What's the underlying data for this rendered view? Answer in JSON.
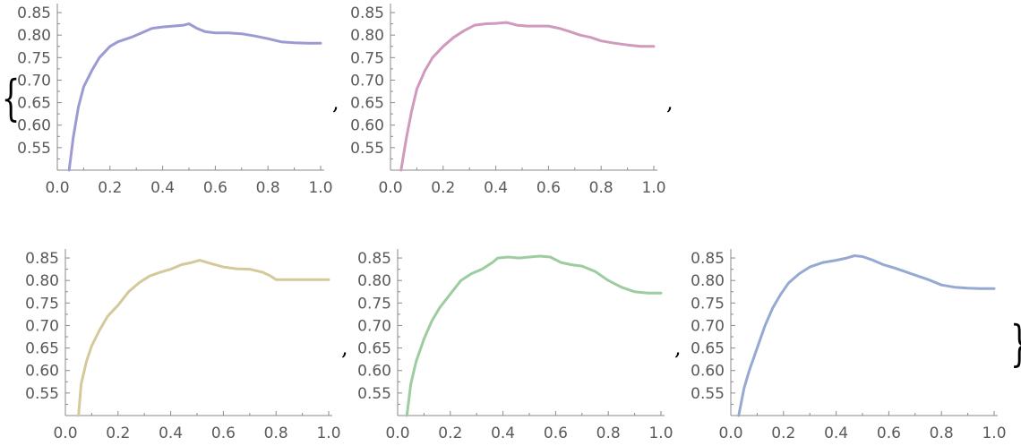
{
  "list_tokens": {
    "open": "{",
    "close": "}",
    "comma": ","
  },
  "chart_data": [
    {
      "type": "line",
      "color": "#9c9ad3",
      "xlim": [
        0,
        1
      ],
      "ylim": [
        0.5,
        0.87
      ],
      "xticks": [
        "0.0",
        "0.2",
        "0.4",
        "0.6",
        "0.8",
        "1.0"
      ],
      "yticks": [
        "0.55",
        "0.60",
        "0.65",
        "0.70",
        "0.75",
        "0.80",
        "0.85"
      ],
      "series": [
        {
          "x": [
            0.045,
            0.06,
            0.08,
            0.1,
            0.13,
            0.16,
            0.2,
            0.23,
            0.28,
            0.32,
            0.36,
            0.4,
            0.44,
            0.48,
            0.5,
            0.53,
            0.56,
            0.6,
            0.65,
            0.7,
            0.75,
            0.8,
            0.85,
            0.9,
            0.95,
            1.0
          ],
          "y": [
            0.5,
            0.57,
            0.64,
            0.685,
            0.72,
            0.75,
            0.775,
            0.785,
            0.795,
            0.805,
            0.815,
            0.818,
            0.82,
            0.822,
            0.825,
            0.815,
            0.808,
            0.805,
            0.805,
            0.803,
            0.798,
            0.792,
            0.785,
            0.783,
            0.782,
            0.782
          ]
        }
      ]
    },
    {
      "type": "line",
      "color": "#cf9abc",
      "xlim": [
        0,
        1
      ],
      "ylim": [
        0.5,
        0.87
      ],
      "xticks": [
        "0.0",
        "0.2",
        "0.4",
        "0.6",
        "0.8",
        "1.0"
      ],
      "yticks": [
        "0.55",
        "0.60",
        "0.65",
        "0.70",
        "0.75",
        "0.80",
        "0.85"
      ],
      "series": [
        {
          "x": [
            0.04,
            0.06,
            0.08,
            0.1,
            0.13,
            0.16,
            0.2,
            0.24,
            0.28,
            0.32,
            0.36,
            0.4,
            0.44,
            0.48,
            0.52,
            0.56,
            0.6,
            0.64,
            0.68,
            0.72,
            0.76,
            0.8,
            0.85,
            0.9,
            0.95,
            1.0
          ],
          "y": [
            0.5,
            0.57,
            0.63,
            0.68,
            0.72,
            0.75,
            0.775,
            0.795,
            0.81,
            0.822,
            0.825,
            0.826,
            0.828,
            0.822,
            0.82,
            0.82,
            0.82,
            0.815,
            0.808,
            0.8,
            0.795,
            0.787,
            0.782,
            0.778,
            0.775,
            0.775
          ]
        }
      ]
    },
    {
      "type": "line",
      "color": "#d4c99a",
      "xlim": [
        0,
        1
      ],
      "ylim": [
        0.5,
        0.87
      ],
      "xticks": [
        "0.0",
        "0.2",
        "0.4",
        "0.6",
        "0.8",
        "1.0"
      ],
      "yticks": [
        "0.55",
        "0.60",
        "0.65",
        "0.70",
        "0.75",
        "0.80",
        "0.85"
      ],
      "series": [
        {
          "x": [
            0.05,
            0.06,
            0.08,
            0.1,
            0.13,
            0.16,
            0.2,
            0.24,
            0.28,
            0.32,
            0.36,
            0.4,
            0.44,
            0.48,
            0.51,
            0.55,
            0.6,
            0.65,
            0.7,
            0.75,
            0.78,
            0.8,
            0.85,
            0.9,
            0.95,
            1.0
          ],
          "y": [
            0.5,
            0.57,
            0.62,
            0.655,
            0.69,
            0.72,
            0.745,
            0.775,
            0.795,
            0.81,
            0.818,
            0.825,
            0.835,
            0.84,
            0.845,
            0.838,
            0.83,
            0.826,
            0.825,
            0.818,
            0.81,
            0.802,
            0.802,
            0.802,
            0.802,
            0.802
          ]
        }
      ]
    },
    {
      "type": "line",
      "color": "#9ccc9f",
      "xlim": [
        0,
        1
      ],
      "ylim": [
        0.5,
        0.87
      ],
      "xticks": [
        "0.0",
        "0.2",
        "0.4",
        "0.6",
        "0.8",
        "1.0"
      ],
      "yticks": [
        "0.55",
        "0.60",
        "0.65",
        "0.70",
        "0.75",
        "0.80",
        "0.85"
      ],
      "series": [
        {
          "x": [
            0.035,
            0.05,
            0.07,
            0.1,
            0.13,
            0.16,
            0.2,
            0.24,
            0.28,
            0.32,
            0.36,
            0.38,
            0.42,
            0.46,
            0.5,
            0.54,
            0.58,
            0.62,
            0.66,
            0.7,
            0.75,
            0.8,
            0.85,
            0.9,
            0.95,
            1.0
          ],
          "y": [
            0.5,
            0.57,
            0.62,
            0.67,
            0.71,
            0.74,
            0.77,
            0.8,
            0.815,
            0.825,
            0.84,
            0.85,
            0.852,
            0.85,
            0.852,
            0.854,
            0.852,
            0.84,
            0.835,
            0.832,
            0.82,
            0.8,
            0.785,
            0.775,
            0.772,
            0.772
          ]
        }
      ]
    },
    {
      "type": "line",
      "color": "#96a9d1",
      "xlim": [
        0,
        1
      ],
      "ylim": [
        0.5,
        0.87
      ],
      "xticks": [
        "0.0",
        "0.2",
        "0.4",
        "0.6",
        "0.8",
        "1.0"
      ],
      "yticks": [
        "0.55",
        "0.60",
        "0.65",
        "0.70",
        "0.75",
        "0.80",
        "0.85"
      ],
      "series": [
        {
          "x": [
            0.03,
            0.05,
            0.07,
            0.1,
            0.13,
            0.16,
            0.19,
            0.22,
            0.26,
            0.3,
            0.35,
            0.4,
            0.44,
            0.47,
            0.5,
            0.54,
            0.58,
            0.62,
            0.66,
            0.7,
            0.75,
            0.8,
            0.85,
            0.9,
            0.95,
            1.0
          ],
          "y": [
            0.5,
            0.56,
            0.6,
            0.65,
            0.7,
            0.74,
            0.77,
            0.795,
            0.815,
            0.83,
            0.84,
            0.845,
            0.85,
            0.855,
            0.853,
            0.845,
            0.835,
            0.828,
            0.82,
            0.812,
            0.802,
            0.79,
            0.785,
            0.783,
            0.782,
            0.782
          ]
        }
      ]
    }
  ]
}
